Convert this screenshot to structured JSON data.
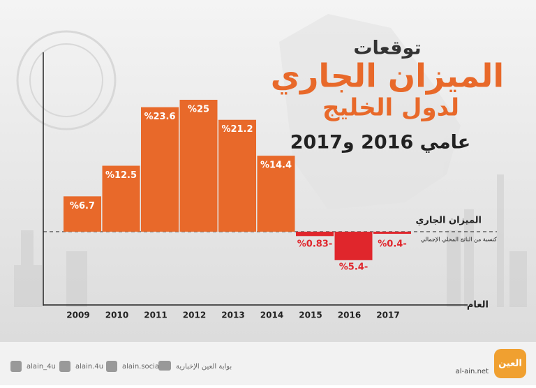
{
  "chart_data": {
    "type": "bar",
    "kicker": "توقعات",
    "title": "الميزان الجاري",
    "subtitle": "لدول الخليج",
    "subtitle2": "عامي 2016 و2017",
    "series_label": "الميزان الجاري",
    "series_note": "كنسبة من الناتج المحلي الإجمالي",
    "x_label": "العام",
    "categories": [
      "2009",
      "2010",
      "2011",
      "2012",
      "2013",
      "2014",
      "2015",
      "2016",
      "2017"
    ],
    "values": [
      6.7,
      12.5,
      23.6,
      25,
      21.2,
      14.4,
      -0.83,
      -5.4,
      -0.4
    ],
    "value_labels": [
      "%6.7",
      "%12.5",
      "%23.6",
      "%25",
      "%21.2",
      "%14.4",
      "%0.83-",
      "%5.4-",
      "%0.4-"
    ],
    "positive_color": "#e8692a",
    "negative_color": "#e0262c"
  },
  "footer": {
    "twitter": "alain_4u",
    "instagram": "alain.4u",
    "facebook": "alain.social",
    "youtube": "بوابة العين الإخبارية",
    "site": "al-ain.net",
    "logo": "العين"
  }
}
